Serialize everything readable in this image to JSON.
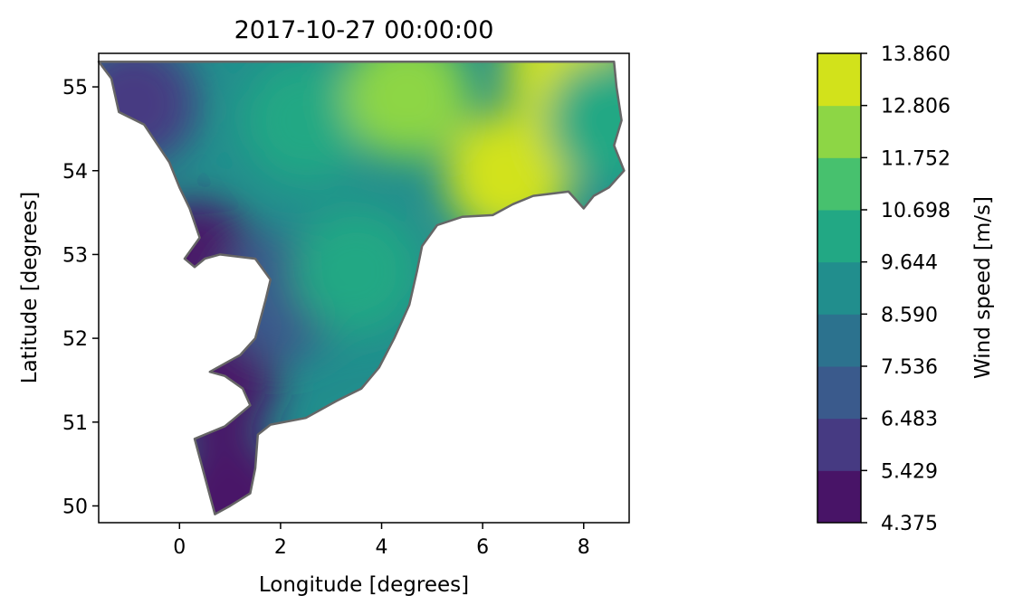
{
  "chart_data": {
    "type": "heatmap",
    "title": "2017-10-27 00:00:00",
    "xlabel": "Longitude [degrees]",
    "ylabel": "Latitude [degrees]",
    "xlim": [
      -1.6,
      8.9
    ],
    "ylim": [
      49.8,
      55.4
    ],
    "xticks": [
      0,
      2,
      4,
      6,
      8
    ],
    "xtick_labels": [
      "0",
      "2",
      "4",
      "6",
      "8"
    ],
    "yticks": [
      50,
      51,
      52,
      53,
      54,
      55
    ],
    "ytick_labels": [
      "50",
      "51",
      "52",
      "53",
      "54",
      "55"
    ],
    "colormap": "viridis",
    "colorbar": {
      "label": "Wind speed [m/s]",
      "levels": [
        4.375,
        5.429,
        6.483,
        7.536,
        8.59,
        9.644,
        10.698,
        11.752,
        12.806,
        13.86
      ],
      "level_labels": [
        "4.375",
        "5.429",
        "6.483",
        "7.536",
        "8.590",
        "9.644",
        "10.698",
        "11.752",
        "12.806",
        "13.860"
      ],
      "colors": [
        "#481467",
        "#463a82",
        "#3a5a8c",
        "#2c728e",
        "#218e8d",
        "#22a884",
        "#47c16e",
        "#8dd645",
        "#d2e21b"
      ]
    },
    "domain_outline": [
      [
        -1.6,
        55.3
      ],
      [
        8.6,
        55.3
      ],
      [
        8.65,
        55.0
      ],
      [
        8.75,
        54.6
      ],
      [
        8.6,
        54.3
      ],
      [
        8.8,
        54.0
      ],
      [
        8.5,
        53.8
      ],
      [
        8.2,
        53.7
      ],
      [
        8.0,
        53.55
      ],
      [
        7.7,
        53.75
      ],
      [
        7.0,
        53.7
      ],
      [
        6.6,
        53.6
      ],
      [
        6.2,
        53.47
      ],
      [
        5.6,
        53.45
      ],
      [
        5.1,
        53.35
      ],
      [
        4.8,
        53.1
      ],
      [
        4.7,
        52.8
      ],
      [
        4.55,
        52.4
      ],
      [
        4.25,
        52.0
      ],
      [
        3.95,
        51.65
      ],
      [
        3.6,
        51.4
      ],
      [
        3.1,
        51.25
      ],
      [
        2.5,
        51.05
      ],
      [
        1.8,
        50.97
      ],
      [
        1.55,
        50.85
      ],
      [
        1.5,
        50.45
      ],
      [
        1.4,
        50.15
      ],
      [
        1.0,
        50.0
      ],
      [
        0.7,
        49.9
      ],
      [
        0.3,
        50.8
      ],
      [
        0.9,
        50.95
      ],
      [
        1.2,
        51.1
      ],
      [
        1.4,
        51.2
      ],
      [
        1.25,
        51.4
      ],
      [
        0.9,
        51.55
      ],
      [
        0.6,
        51.6
      ],
      [
        1.2,
        51.8
      ],
      [
        1.5,
        52.0
      ],
      [
        1.7,
        52.45
      ],
      [
        1.8,
        52.7
      ],
      [
        1.5,
        52.95
      ],
      [
        0.8,
        53.0
      ],
      [
        0.5,
        52.95
      ],
      [
        0.3,
        52.85
      ],
      [
        0.1,
        52.95
      ],
      [
        0.4,
        53.2
      ],
      [
        0.2,
        53.55
      ],
      [
        0.0,
        53.8
      ],
      [
        -0.2,
        54.1
      ],
      [
        -0.7,
        54.55
      ],
      [
        -1.2,
        54.7
      ],
      [
        -1.35,
        55.1
      ],
      [
        -1.6,
        55.3
      ]
    ],
    "field_blobs": [
      {
        "lon": 1.0,
        "lat": 50.1,
        "value": 5.0
      },
      {
        "lon": 0.7,
        "lat": 51.5,
        "value": 4.6
      },
      {
        "lon": 0.3,
        "lat": 52.9,
        "value": 5.2
      },
      {
        "lon": -0.9,
        "lat": 54.8,
        "value": 6.0
      },
      {
        "lon": 2.0,
        "lat": 52.5,
        "value": 7.2
      },
      {
        "lon": 3.5,
        "lat": 52.8,
        "value": 10.0
      },
      {
        "lon": 2.5,
        "lat": 54.6,
        "value": 10.0
      },
      {
        "lon": 4.5,
        "lat": 54.9,
        "value": 12.5
      },
      {
        "lon": 6.5,
        "lat": 53.95,
        "value": 13.0
      },
      {
        "lon": 7.7,
        "lat": 55.2,
        "value": 13.6
      },
      {
        "lon": 8.5,
        "lat": 54.6,
        "value": 9.8
      }
    ]
  }
}
